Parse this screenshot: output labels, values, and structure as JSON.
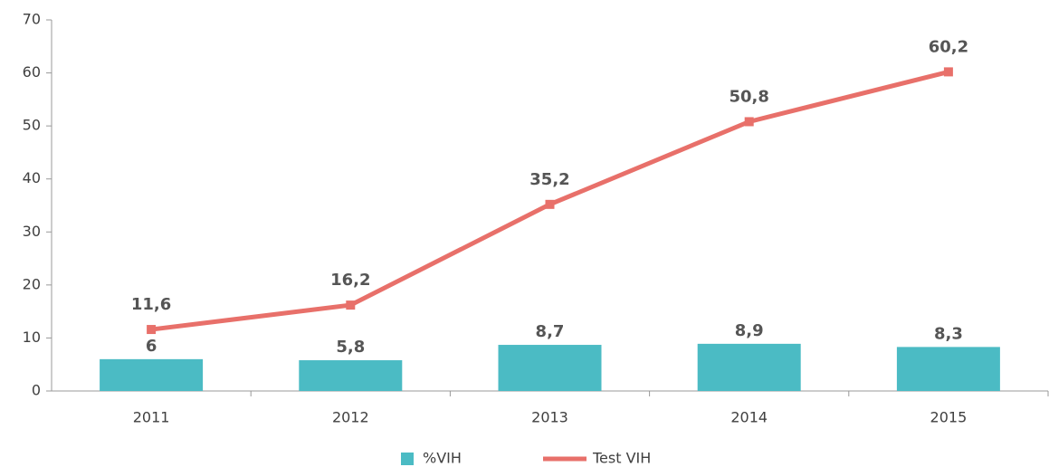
{
  "chart_data": {
    "type": "combo",
    "categories": [
      "2011",
      "2012",
      "2013",
      "2014",
      "2015"
    ],
    "series": [
      {
        "name": "%VIH",
        "type": "bar",
        "color": "#4bbbc4",
        "values": [
          6,
          5.8,
          8.7,
          8.9,
          8.3
        ],
        "value_labels": [
          "6",
          "5,8",
          "8,7",
          "8,9",
          "8,3"
        ]
      },
      {
        "name": "Test VIH",
        "type": "line",
        "color": "#e8706a",
        "values": [
          11.6,
          16.2,
          35.2,
          50.8,
          60.2
        ],
        "value_labels": [
          "11,6",
          "16,2",
          "35,2",
          "50,8",
          "60,2"
        ]
      }
    ],
    "ylim": [
      0,
      70
    ],
    "yticks": [
      0,
      10,
      20,
      30,
      40,
      50,
      60,
      70
    ],
    "grid": false,
    "legend": "bottom"
  }
}
